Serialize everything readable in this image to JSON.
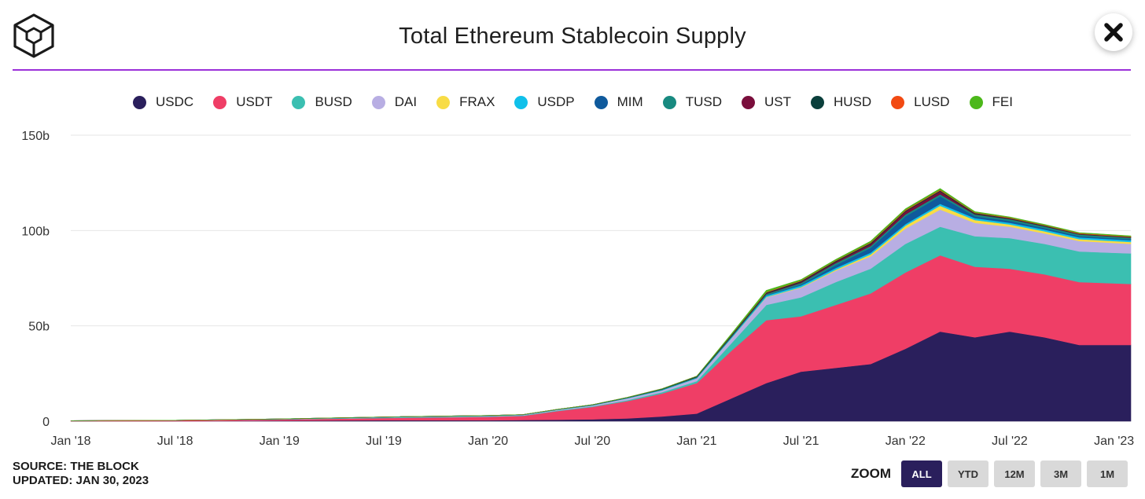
{
  "header": {
    "title": "Total Ethereum Stablecoin Supply"
  },
  "footer": {
    "source": "SOURCE: THE BLOCK",
    "updated": "UPDATED: JAN 30, 2023"
  },
  "zoom": {
    "label": "ZOOM",
    "options": [
      "ALL",
      "YTD",
      "12M",
      "3M",
      "1M"
    ],
    "selected": "ALL"
  },
  "chart_data": {
    "type": "area",
    "stacked": true,
    "title": "Total Ethereum Stablecoin Supply",
    "ylim": [
      0,
      150
    ],
    "y_ticks": [
      0,
      50,
      100,
      150
    ],
    "y_tick_labels": [
      "0",
      "50b",
      "100b",
      "150b"
    ],
    "x_tick_labels": [
      "Jan '18",
      "Jul '18",
      "Jan '19",
      "Jul '19",
      "Jan '20",
      "Jul '20",
      "Jan '21",
      "Jul '21",
      "Jan '22",
      "Jul '22",
      "Jan '23"
    ],
    "x_range": [
      "2018-01",
      "2023-01-30"
    ],
    "grid": true,
    "legend_position": "top",
    "x": [
      "2018-01",
      "2018-07",
      "2019-01",
      "2019-07",
      "2020-01",
      "2020-03",
      "2020-05",
      "2020-07",
      "2020-09",
      "2020-11",
      "2021-01",
      "2021-03",
      "2021-05",
      "2021-07",
      "2021-09",
      "2021-11",
      "2022-01",
      "2022-03",
      "2022-05",
      "2022-07",
      "2022-09",
      "2022-11",
      "2023-01"
    ],
    "series": [
      {
        "name": "USDC",
        "color": "#2a1f5c",
        "values": [
          0,
          0,
          0.3,
          0.5,
          0.5,
          0.6,
          0.8,
          1,
          1.5,
          2.5,
          4,
          12,
          20,
          26,
          28,
          30,
          38,
          47,
          44,
          47,
          44,
          40,
          40
        ]
      },
      {
        "name": "USDT",
        "color": "#ef3e66",
        "values": [
          0.3,
          0.5,
          0.6,
          1.2,
          1.8,
          2.2,
          4.5,
          6.5,
          9,
          12,
          16,
          25,
          33,
          29,
          33,
          37,
          40,
          40,
          37,
          33,
          33,
          33,
          32
        ]
      },
      {
        "name": "BUSD",
        "color": "#3bbfb1",
        "values": [
          0,
          0,
          0.1,
          0.2,
          0.2,
          0.2,
          0.3,
          0.3,
          0.5,
          0.7,
          1,
          4,
          8,
          10,
          12,
          13,
          15,
          15,
          16,
          16,
          16,
          16,
          16
        ]
      },
      {
        "name": "DAI",
        "color": "#b8aee3",
        "values": [
          0,
          0,
          0.1,
          0.2,
          0.3,
          0.3,
          0.4,
          0.5,
          1,
          1,
          1.5,
          2.5,
          4,
          5,
          6,
          6.5,
          8,
          9,
          7,
          6,
          5.5,
          5.5,
          5
        ]
      },
      {
        "name": "FRAX",
        "color": "#f8dc45",
        "values": [
          0,
          0,
          0,
          0,
          0,
          0,
          0,
          0,
          0,
          0,
          0,
          0.1,
          0.2,
          0.3,
          0.5,
          1,
          1.5,
          2,
          1.5,
          1.2,
          1.1,
          1,
          1
        ]
      },
      {
        "name": "USDP",
        "color": "#10c0ea",
        "values": [
          0,
          0,
          0,
          0,
          0.05,
          0.05,
          0.05,
          0.1,
          0.1,
          0.2,
          0.3,
          0.5,
          0.7,
          0.9,
          0.9,
          0.9,
          0.9,
          1,
          1,
          0.9,
          0.9,
          0.9,
          0.9
        ]
      },
      {
        "name": "MIM",
        "color": "#0f5a9c",
        "values": [
          0,
          0,
          0,
          0,
          0,
          0,
          0,
          0,
          0,
          0,
          0,
          0,
          0.2,
          0.5,
          1.5,
          2.5,
          4,
          4,
          1,
          1,
          0.8,
          0.7,
          0.6
        ]
      },
      {
        "name": "TUSD",
        "color": "#188a80",
        "values": [
          0,
          0,
          0.1,
          0.15,
          0.15,
          0.15,
          0.2,
          0.2,
          0.3,
          0.4,
          0.4,
          0.5,
          0.6,
          0.8,
          1,
          1,
          1,
          1,
          0.9,
          0.8,
          0.8,
          0.8,
          0.7
        ]
      },
      {
        "name": "UST",
        "color": "#7a0e3c",
        "values": [
          0,
          0,
          0,
          0,
          0,
          0,
          0,
          0,
          0,
          0,
          0.1,
          0.2,
          0.3,
          0.5,
          0.7,
          1,
          1.5,
          1.5,
          0.3,
          0.2,
          0.2,
          0.2,
          0.2
        ]
      },
      {
        "name": "HUSD",
        "color": "#0b3f3c",
        "values": [
          0,
          0,
          0,
          0,
          0,
          0,
          0,
          0.1,
          0.1,
          0.2,
          0.3,
          0.5,
          0.5,
          0.5,
          0.5,
          0.5,
          0.5,
          0.5,
          0.5,
          0.4,
          0.3,
          0.2,
          0.2
        ]
      },
      {
        "name": "LUSD",
        "color": "#f24a12",
        "values": [
          0,
          0,
          0,
          0,
          0,
          0,
          0,
          0,
          0,
          0,
          0,
          0.1,
          0.3,
          0.3,
          0.3,
          0.4,
          0.4,
          0.4,
          0.3,
          0.3,
          0.3,
          0.3,
          0.3
        ]
      },
      {
        "name": "FEI",
        "color": "#4cb81a",
        "values": [
          0,
          0,
          0,
          0,
          0,
          0,
          0,
          0,
          0,
          0,
          0,
          0.5,
          0.8,
          0.5,
          0.5,
          0.6,
          0.6,
          0.6,
          0.4,
          0.3,
          0.3,
          0.3,
          0.3
        ]
      }
    ]
  }
}
